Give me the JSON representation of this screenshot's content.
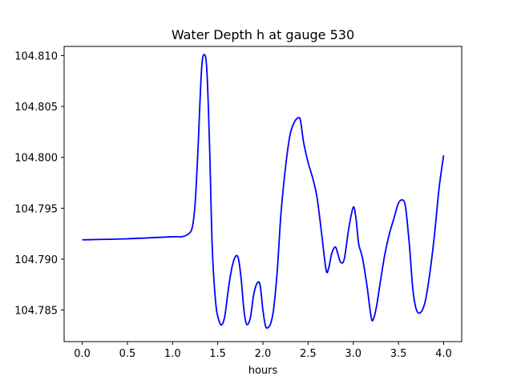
{
  "chart_data": {
    "type": "line",
    "title": "Water Depth h at gauge 530",
    "xlabel": "hours",
    "ylabel": "",
    "xlim": [
      -0.2,
      4.2
    ],
    "ylim": [
      104.7819,
      104.8109
    ],
    "xticks": [
      0.0,
      0.5,
      1.0,
      1.5,
      2.0,
      2.5,
      3.0,
      3.5,
      4.0
    ],
    "xtick_labels": [
      "0.0",
      "0.5",
      "1.0",
      "1.5",
      "2.0",
      "2.5",
      "3.0",
      "3.5",
      "4.0"
    ],
    "yticks": [
      104.785,
      104.79,
      104.795,
      104.8,
      104.805,
      104.81
    ],
    "ytick_labels": [
      "104.785",
      "104.790",
      "104.795",
      "104.800",
      "104.805",
      "104.810"
    ],
    "grid": false,
    "line_color": "#0000ff",
    "series": [
      {
        "x": [
          0.0,
          0.5,
          1.0,
          1.1,
          1.18,
          1.22,
          1.25,
          1.28,
          1.32,
          1.35,
          1.38,
          1.41,
          1.44,
          1.48,
          1.52,
          1.55,
          1.58,
          1.62,
          1.66,
          1.7,
          1.73,
          1.76,
          1.79,
          1.82,
          1.86,
          1.9,
          1.94,
          1.97,
          2.0,
          2.03,
          2.06,
          2.09,
          2.12,
          2.16,
          2.2,
          2.25,
          2.3,
          2.35,
          2.4,
          2.42,
          2.45,
          2.5,
          2.55,
          2.6,
          2.65,
          2.7,
          2.73,
          2.76,
          2.8,
          2.83,
          2.86,
          2.9,
          2.95,
          3.0,
          3.03,
          3.06,
          3.1,
          3.15,
          3.2,
          3.23,
          3.26,
          3.3,
          3.35,
          3.4,
          3.45,
          3.5,
          3.55,
          3.58,
          3.62,
          3.66,
          3.7,
          3.75,
          3.8,
          3.85,
          3.9,
          3.95,
          4.0
        ],
        "y": [
          104.7919,
          104.792,
          104.7922,
          104.7922,
          104.7925,
          104.7932,
          104.7955,
          104.8005,
          104.8085,
          104.8101,
          104.8085,
          104.801,
          104.791,
          104.7855,
          104.7838,
          104.7836,
          104.7845,
          104.7872,
          104.7893,
          104.7903,
          104.79,
          104.788,
          104.785,
          104.7836,
          104.7842,
          104.7866,
          104.7877,
          104.7874,
          104.785,
          104.7834,
          104.7833,
          104.7838,
          104.7852,
          104.789,
          104.7945,
          104.799,
          104.8022,
          104.8035,
          104.8039,
          104.8034,
          104.8015,
          104.7995,
          104.798,
          104.796,
          104.7925,
          104.7889,
          104.7892,
          104.7905,
          104.7912,
          104.7905,
          104.7897,
          104.79,
          104.793,
          104.7951,
          104.794,
          104.7915,
          104.7902,
          104.7875,
          104.7842,
          104.7843,
          104.7855,
          104.7878,
          104.7905,
          104.7925,
          104.794,
          104.7955,
          104.7958,
          104.795,
          104.7915,
          104.787,
          104.785,
          104.7848,
          104.786,
          104.7888,
          104.7925,
          104.797,
          104.8002
        ]
      }
    ]
  }
}
